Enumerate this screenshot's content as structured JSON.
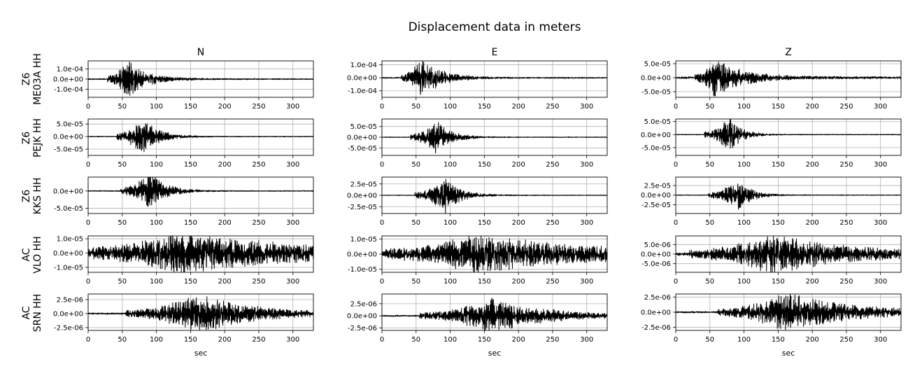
{
  "figure": {
    "title": "Displacement data in meters",
    "columns": [
      "N",
      "E",
      "Z"
    ],
    "rows": [
      {
        "network": "Z6",
        "station": "ME03A HH"
      },
      {
        "network": "Z6",
        "station": "PEJK HH"
      },
      {
        "network": "Z6",
        "station": "KKS HH"
      },
      {
        "network": "AC",
        "station": "VLO HH"
      },
      {
        "network": "AC",
        "station": "SRN HH"
      }
    ],
    "xlabel": "sec"
  },
  "chart_data": {
    "type": "line",
    "title": "Displacement data in meters",
    "xlabel": "sec",
    "xlim": [
      0,
      330
    ],
    "xticks": [
      0,
      50,
      100,
      150,
      200,
      250,
      300
    ],
    "grid": true,
    "line_color": "#000000",
    "panels": [
      {
        "row": 0,
        "col": "N",
        "ylim": [
          -0.00018,
          0.00018
        ],
        "yticks": [
          0.0001,
          0,
          -0.0001
        ],
        "ytick_labels": [
          "1.0e-04",
          "0.0e+00",
          "-1.0e-04"
        ],
        "onset": 28,
        "peak_time": 57,
        "peak_amp": 0.00017,
        "decay": 28,
        "noise": 0.03
      },
      {
        "row": 0,
        "col": "E",
        "ylim": [
          -0.00015,
          0.00013
        ],
        "yticks": [
          0.0001,
          0,
          -0.0001
        ],
        "ytick_labels": [
          "1.0e-04",
          "0.0e+00",
          "-1.0e-04"
        ],
        "onset": 28,
        "peak_time": 58,
        "peak_amp": 0.00014,
        "decay": 28,
        "noise": 0.03
      },
      {
        "row": 0,
        "col": "Z",
        "ylim": [
          -7e-05,
          6e-05
        ],
        "yticks": [
          5e-05,
          0,
          -5e-05
        ],
        "ytick_labels": [
          "5.0e-05",
          "0.0e+00",
          "-5.0e-05"
        ],
        "onset": 28,
        "peak_time": 57,
        "peak_amp": 6e-05,
        "decay": 40,
        "noise": 0.06
      },
      {
        "row": 1,
        "col": "N",
        "ylim": [
          -7.5e-05,
          7e-05
        ],
        "yticks": [
          5e-05,
          0,
          -5e-05
        ],
        "ytick_labels": [
          "5.0e-05",
          "0.0e+00",
          "-5.0e-05"
        ],
        "onset": 42,
        "peak_time": 80,
        "peak_amp": 7e-05,
        "decay": 22,
        "noise": 0.02
      },
      {
        "row": 1,
        "col": "E",
        "ylim": [
          -8.5e-05,
          8.5e-05
        ],
        "yticks": [
          5e-05,
          0,
          -5e-05
        ],
        "ytick_labels": [
          "5.0e-05",
          "0.0e+00",
          "-5.0e-05"
        ],
        "onset": 42,
        "peak_time": 80,
        "peak_amp": 7.5e-05,
        "decay": 20,
        "noise": 0.02
      },
      {
        "row": 1,
        "col": "Z",
        "ylim": [
          -8e-05,
          6e-05
        ],
        "yticks": [
          5e-05,
          0,
          -5e-05
        ],
        "ytick_labels": [
          "5.0e-05",
          "0.0e+00",
          "-5.0e-05"
        ],
        "onset": 42,
        "peak_time": 80,
        "peak_amp": 6.5e-05,
        "decay": 16,
        "noise": 0.02
      },
      {
        "row": 2,
        "col": "N",
        "ylim": [
          -6.5e-05,
          4e-05
        ],
        "yticks": [
          0,
          -5e-05
        ],
        "ytick_labels": [
          "0.0e+00",
          "-5.0e-05"
        ],
        "onset": 48,
        "peak_time": 90,
        "peak_amp": 5.5e-05,
        "decay": 22,
        "noise": 0.02
      },
      {
        "row": 2,
        "col": "E",
        "ylim": [
          -4e-05,
          4e-05
        ],
        "yticks": [
          2.5e-05,
          0,
          -2.5e-05
        ],
        "ytick_labels": [
          "2.5e-05",
          "0.0e+00",
          "-2.5e-05"
        ],
        "onset": 48,
        "peak_time": 93,
        "peak_amp": 3.5e-05,
        "decay": 22,
        "noise": 0.02
      },
      {
        "row": 2,
        "col": "Z",
        "ylim": [
          -4.8e-05,
          4.7e-05
        ],
        "yticks": [
          2.5e-05,
          0,
          -2.5e-05
        ],
        "ytick_labels": [
          "2.5e-05",
          "0.0e+00",
          "-2.5e-05"
        ],
        "onset": 48,
        "peak_time": 92,
        "peak_amp": 4e-05,
        "decay": 18,
        "noise": 0.02
      },
      {
        "row": 3,
        "col": "N",
        "ylim": [
          -1.35e-05,
          1.2e-05
        ],
        "yticks": [
          1e-05,
          0,
          -1e-05
        ],
        "ytick_labels": [
          "1.0e-05",
          "0.0e+00",
          "-1.0e-05"
        ],
        "onset": 5,
        "peak_time": 130,
        "peak_amp": 1.2e-05,
        "decay": 150,
        "noise": 0.2
      },
      {
        "row": 3,
        "col": "E",
        "ylim": [
          -1.2e-05,
          1.2e-05
        ],
        "yticks": [
          1e-05,
          0,
          -1e-05
        ],
        "ytick_labels": [
          "1.0e-05",
          "0.0e+00",
          "-1.0e-05"
        ],
        "onset": 5,
        "peak_time": 135,
        "peak_amp": 1.1e-05,
        "decay": 150,
        "noise": 0.15
      },
      {
        "row": 3,
        "col": "Z",
        "ylim": [
          -9.5e-06,
          9.5e-06
        ],
        "yticks": [
          5e-06,
          0,
          -5e-06
        ],
        "ytick_labels": [
          "5.0e-06",
          "0.0e+00",
          "-5.0e-06"
        ],
        "onset": 20,
        "peak_time": 140,
        "peak_amp": 9e-06,
        "decay": 110,
        "noise": 0.08
      },
      {
        "row": 4,
        "col": "N",
        "ylim": [
          -3e-06,
          3.5e-06
        ],
        "yticks": [
          2.5e-06,
          0,
          -2.5e-06
        ],
        "ytick_labels": [
          "2.5e-06",
          "0.0e+00",
          "-2.5e-06"
        ],
        "onset": 55,
        "peak_time": 160,
        "peak_amp": 3.2e-06,
        "decay": 80,
        "noise": 0.04
      },
      {
        "row": 4,
        "col": "E",
        "ylim": [
          -3e-06,
          4.5e-06
        ],
        "yticks": [
          2.5e-06,
          0,
          -2.5e-06
        ],
        "ytick_labels": [
          "2.5e-06",
          "0.0e+00",
          "-2.5e-06"
        ],
        "onset": 55,
        "peak_time": 160,
        "peak_amp": 3.2e-06,
        "decay": 80,
        "noise": 0.04
      },
      {
        "row": 4,
        "col": "Z",
        "ylim": [
          -3e-06,
          3e-06
        ],
        "yticks": [
          2.5e-06,
          0,
          -2.5e-06
        ],
        "ytick_labels": [
          "2.5e-06",
          "0.0e+00",
          "-2.5e-06"
        ],
        "onset": 60,
        "peak_time": 165,
        "peak_amp": 3e-06,
        "decay": 90,
        "noise": 0.04
      }
    ]
  }
}
